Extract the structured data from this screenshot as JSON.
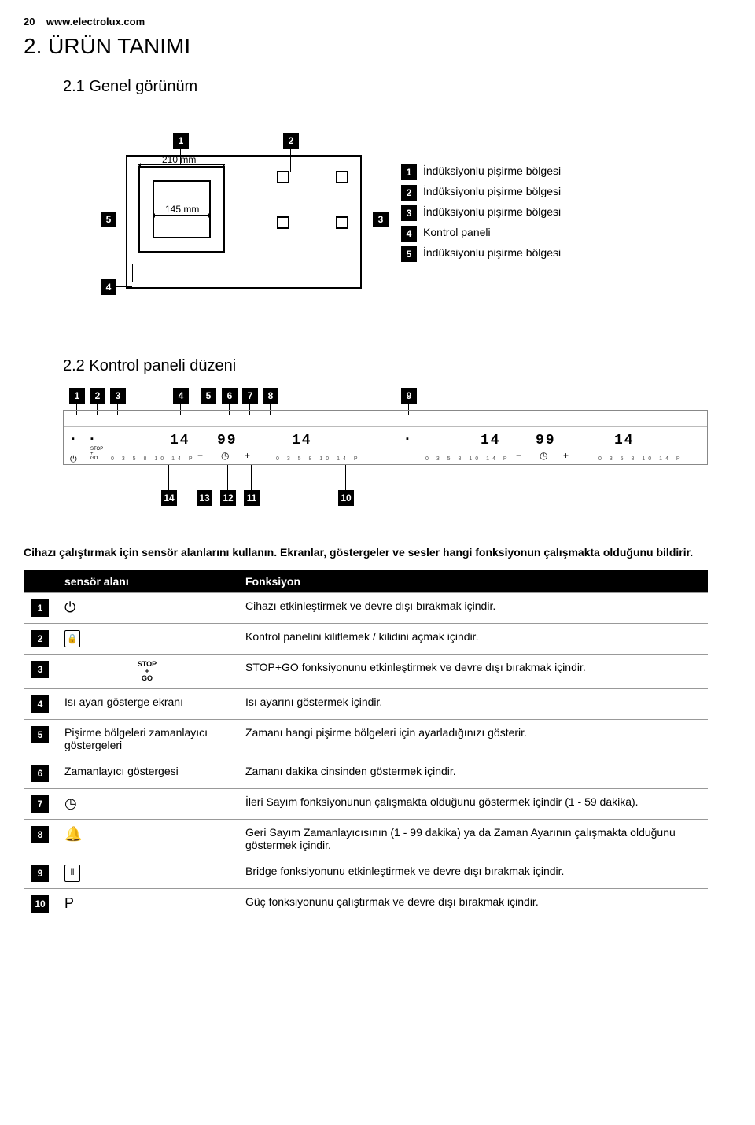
{
  "header": {
    "page_number": "20",
    "url": "www.electrolux.com"
  },
  "h1": "2. ÜRÜN TANIMI",
  "sec1": {
    "title": "2.1 Genel görünüm",
    "dim1": "210 mm",
    "dim2": "145 mm",
    "callouts": [
      "1",
      "2",
      "3",
      "4",
      "5"
    ],
    "legend": [
      {
        "n": "1",
        "t": "İndüksiyonlu pişirme bölgesi"
      },
      {
        "n": "2",
        "t": "İndüksiyonlu pişirme bölgesi"
      },
      {
        "n": "3",
        "t": "İndüksiyonlu pişirme bölgesi"
      },
      {
        "n": "4",
        "t": "Kontrol paneli"
      },
      {
        "n": "5",
        "t": "İndüksiyonlu pişirme bölgesi"
      }
    ]
  },
  "sec2": {
    "title": "2.2 Kontrol paneli düzeni",
    "seg_14": "14",
    "seg_99": "99",
    "tick_labels": "0  3  5  8 10  14 P",
    "top_callouts": [
      "1",
      "2",
      "3",
      "4",
      "5",
      "6",
      "7",
      "8",
      "9"
    ],
    "bot_callouts": [
      "14",
      "13",
      "12",
      "11",
      "10"
    ]
  },
  "instr": "Cihazı çalıştırmak için sensör alanlarını kullanın. Ekranlar, göstergeler ve sesler hangi fonksiyonun çalışmakta olduğunu bildirir.",
  "table": {
    "headers": {
      "c2": "sensör alanı",
      "c3": "Fonksiyon"
    },
    "rows": [
      {
        "n": "1",
        "sym": "power",
        "area": "",
        "fn": "Cihazı etkinleştirmek ve devre dışı bırakmak içindir."
      },
      {
        "n": "2",
        "sym": "lock",
        "area": "",
        "fn": "Kontrol panelini kilitlemek / kilidini açmak içindir."
      },
      {
        "n": "3",
        "sym": "stopgo",
        "area": "",
        "fn": "STOP+GO fonksiyonunu etkinleştirmek ve devre dışı bırakmak içindir."
      },
      {
        "n": "4",
        "sym": "",
        "area": "Isı ayarı gösterge ekranı",
        "fn": "Isı ayarını göstermek içindir."
      },
      {
        "n": "5",
        "sym": "",
        "area": "Pişirme bölgeleri zamanlayıcı göstergeleri",
        "fn": "Zamanı hangi pişirme bölgeleri için ayarladığınızı gösterir."
      },
      {
        "n": "6",
        "sym": "",
        "area": "Zamanlayıcı göstergesi",
        "fn": "Zamanı dakika cinsinden göstermek içindir."
      },
      {
        "n": "7",
        "sym": "clock",
        "area": "",
        "fn": "İleri Sayım fonksiyonunun çalışmakta olduğunu göstermek içindir (1 - 59 dakika)."
      },
      {
        "n": "8",
        "sym": "bell",
        "area": "",
        "fn": "Geri Sayım Zamanlayıcısının (1 - 99 dakika) ya da Zaman Ayarının çalışmakta olduğunu göstermek içindir."
      },
      {
        "n": "9",
        "sym": "bridge",
        "area": "",
        "fn": "Bridge fonksiyonunu etkinleştirmek ve devre dışı bırakmak içindir."
      },
      {
        "n": "10",
        "sym": "P",
        "area": "",
        "fn": "Güç fonksiyonunu çalıştırmak ve devre dışı bırakmak içindir."
      }
    ]
  },
  "symbols": {
    "power": "⏻",
    "lock": "🔒",
    "clock": "◷",
    "bell": "🔔",
    "P": "P",
    "minus": "−",
    "plus": "+",
    "bridge": "▭"
  },
  "colors": {
    "text": "#000000",
    "bg": "#ffffff",
    "badge_bg": "#000000",
    "badge_fg": "#ffffff",
    "grid": "#999999"
  }
}
